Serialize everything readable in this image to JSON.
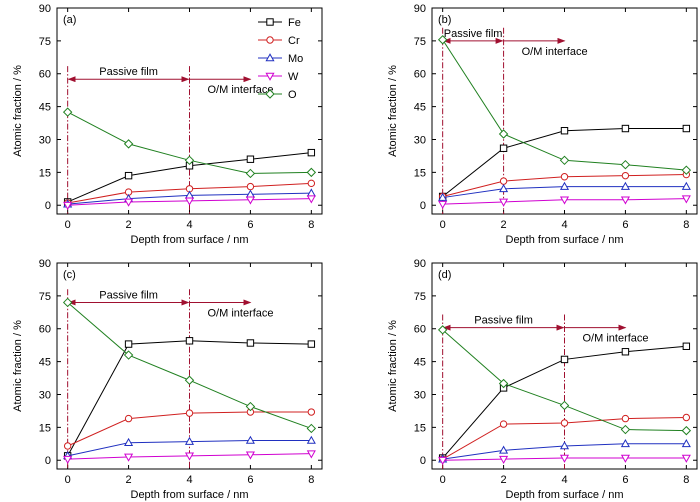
{
  "chart_data": [
    {
      "type": "line",
      "panel_label": "(a)",
      "x": [
        0,
        2,
        4,
        6,
        8
      ],
      "xlabel": "Depth from surface / nm",
      "ylabel": "Atomic fraction / %",
      "xlim": [
        0,
        8
      ],
      "ylim": [
        0,
        90
      ],
      "xticks": [
        "0",
        "2",
        "4",
        "6",
        "8"
      ],
      "yticks": [
        "0",
        "15",
        "30",
        "45",
        "60",
        "75",
        "90"
      ],
      "legend_placement": "top-right",
      "series": [
        {
          "name": "Fe",
          "values": [
            1.5,
            13.5,
            18,
            21,
            24
          ]
        },
        {
          "name": "Cr",
          "values": [
            1,
            6,
            7.5,
            8.5,
            10
          ]
        },
        {
          "name": "Mo",
          "values": [
            0.5,
            3,
            4.5,
            5,
            5.5
          ]
        },
        {
          "name": "W",
          "values": [
            0,
            1.5,
            2,
            2.5,
            3
          ]
        },
        {
          "name": "O",
          "values": [
            42.5,
            28,
            20.5,
            14.5,
            15
          ]
        }
      ],
      "annotations": {
        "passive_film": "Passive film",
        "interface": "O/M interface",
        "interface_depth": 4,
        "arrow_y": 57.5
      }
    },
    {
      "type": "line",
      "panel_label": "(b)",
      "x": [
        0,
        2,
        4,
        6,
        8
      ],
      "xlabel": "Depth from surface / nm",
      "ylabel": "Atomic fraction / %",
      "xlim": [
        0,
        8
      ],
      "ylim": [
        0,
        90
      ],
      "xticks": [
        "0",
        "2",
        "4",
        "6",
        "8"
      ],
      "yticks": [
        "0",
        "15",
        "30",
        "45",
        "60",
        "75",
        "90"
      ],
      "series": [
        {
          "name": "Fe",
          "values": [
            4,
            26,
            34,
            35,
            35
          ]
        },
        {
          "name": "Cr",
          "values": [
            4,
            11,
            13,
            13.5,
            14
          ]
        },
        {
          "name": "Mo",
          "values": [
            3.5,
            7.5,
            8.5,
            8.5,
            8.5
          ]
        },
        {
          "name": "W",
          "values": [
            0.5,
            1.5,
            2.5,
            2.5,
            3
          ]
        },
        {
          "name": "O",
          "values": [
            75.5,
            32.5,
            20.5,
            18.5,
            16
          ]
        }
      ],
      "annotations": {
        "passive_film": "Passive film",
        "interface": "O/M interface",
        "interface_depth": 2,
        "arrow_y": 75
      }
    },
    {
      "type": "line",
      "panel_label": "(c)",
      "x": [
        0,
        2,
        4,
        6,
        8
      ],
      "xlabel": "Depth from surface / nm",
      "ylabel": "Atomic fraction / %",
      "xlim": [
        0,
        8
      ],
      "ylim": [
        0,
        90
      ],
      "xticks": [
        "0",
        "2",
        "4",
        "6",
        "8"
      ],
      "yticks": [
        "0",
        "15",
        "30",
        "45",
        "60",
        "75",
        "90"
      ],
      "series": [
        {
          "name": "Fe",
          "values": [
            2,
            53,
            54.5,
            53.5,
            53
          ]
        },
        {
          "name": "Cr",
          "values": [
            6.5,
            19,
            21.5,
            22,
            22
          ]
        },
        {
          "name": "Mo",
          "values": [
            2,
            8,
            8.5,
            9,
            9
          ]
        },
        {
          "name": "W",
          "values": [
            0.5,
            1.5,
            2,
            2.5,
            3
          ]
        },
        {
          "name": "O",
          "values": [
            72,
            48,
            36.5,
            24.5,
            14.5
          ]
        }
      ],
      "annotations": {
        "passive_film": "Passive film",
        "interface": "O/M interface",
        "interface_depth": 4,
        "arrow_y": 72
      }
    },
    {
      "type": "line",
      "panel_label": "(d)",
      "x": [
        0,
        2,
        4,
        6,
        8
      ],
      "xlabel": "Depth from surface / nm",
      "ylabel": "Atomic fraction / %",
      "xlim": [
        0,
        8
      ],
      "ylim": [
        0,
        90
      ],
      "xticks": [
        "0",
        "2",
        "4",
        "6",
        "8"
      ],
      "yticks": [
        "0",
        "15",
        "30",
        "45",
        "60",
        "75",
        "90"
      ],
      "series": [
        {
          "name": "Fe",
          "values": [
            1,
            33,
            46,
            49.5,
            52
          ]
        },
        {
          "name": "Cr",
          "values": [
            0.5,
            16.5,
            17,
            19,
            19.5
          ]
        },
        {
          "name": "Mo",
          "values": [
            0.5,
            4.5,
            6.5,
            7.5,
            7.5
          ]
        },
        {
          "name": "W",
          "values": [
            0,
            0.5,
            1,
            1,
            1
          ]
        },
        {
          "name": "O",
          "values": [
            59.5,
            35,
            25,
            14,
            13.5
          ]
        }
      ],
      "annotations": {
        "passive_film": "Passive film",
        "interface": "O/M interface",
        "interface_depth": 4,
        "arrow_y": 60.5
      }
    }
  ],
  "colors": {
    "Fe": "#000000",
    "Cr": "#d02020",
    "Mo": "#2030c0",
    "W": "#d000d0",
    "O": "#208020",
    "interface_line": "#a01030"
  },
  "markers": {
    "Fe": "square",
    "Cr": "circle",
    "Mo": "triangle-up",
    "W": "triangle-down",
    "O": "diamond"
  }
}
